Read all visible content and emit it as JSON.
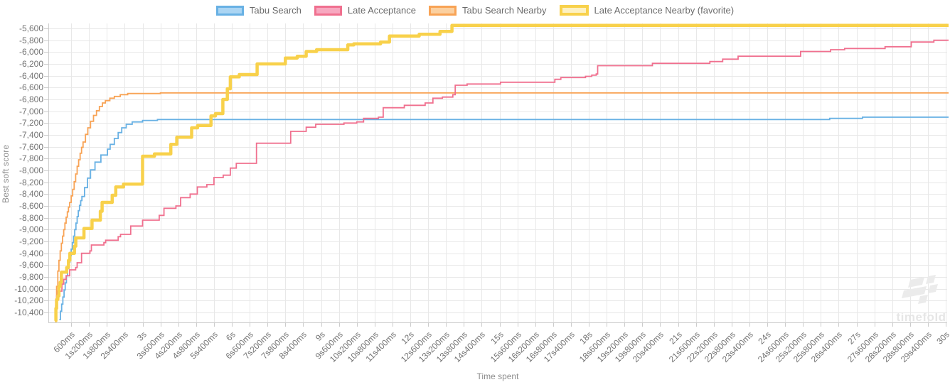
{
  "chart_data": {
    "type": "line",
    "stepped": true,
    "title": "",
    "xlabel": "Time spent",
    "ylabel": "Best soft score",
    "watermark": "timefold",
    "grid": true,
    "legend_position": "top",
    "x_range_ms": [
      0,
      30000
    ],
    "y_range": [
      -10560,
      -5520
    ],
    "x_tick_ms": [
      600,
      1200,
      1800,
      2400,
      3000,
      3600,
      4200,
      4800,
      5400,
      6000,
      6600,
      7200,
      7800,
      8400,
      9000,
      9600,
      10200,
      10800,
      11400,
      12000,
      12600,
      13200,
      13800,
      14400,
      15000,
      15600,
      16200,
      16800,
      17400,
      18000,
      18600,
      19200,
      19800,
      20400,
      21000,
      21600,
      22200,
      22800,
      23400,
      24000,
      24600,
      25200,
      25800,
      26400,
      27000,
      27600,
      28200,
      28800,
      29400,
      30000
    ],
    "x_tick_labels": [
      "600ms",
      "1s200ms",
      "1s800ms",
      "2s400ms",
      "3s",
      "3s600ms",
      "4s200ms",
      "4s800ms",
      "5s400ms",
      "6s",
      "6s600ms",
      "7s200ms",
      "7s800ms",
      "8s400ms",
      "9s",
      "9s600ms",
      "10s200ms",
      "10s800ms",
      "11s400ms",
      "12s",
      "12s600ms",
      "13s200ms",
      "13s800ms",
      "14s400ms",
      "15s",
      "15s600ms",
      "16s200ms",
      "16s800ms",
      "17s400ms",
      "18s",
      "18s600ms",
      "19s200ms",
      "19s800ms",
      "20s400ms",
      "21s",
      "21s600ms",
      "22s200ms",
      "22s800ms",
      "23s400ms",
      "24s",
      "24s600ms",
      "25s200ms",
      "25s800ms",
      "26s400ms",
      "27s",
      "27s600ms",
      "28s200ms",
      "28s800ms",
      "29s400ms",
      "30s"
    ],
    "y_tick_values": [
      -5600,
      -5800,
      -6000,
      -6200,
      -6400,
      -6600,
      -6800,
      -7000,
      -7200,
      -7400,
      -7600,
      -7800,
      -8000,
      -8200,
      -8400,
      -8600,
      -8800,
      -9000,
      -9200,
      -9400,
      -9600,
      -9800,
      -10000,
      -10200,
      -10400
    ],
    "y_tick_labels": [
      "-5,600",
      "-5,800",
      "-6,000",
      "-6,200",
      "-6,400",
      "-6,600",
      "-6,800",
      "-7,000",
      "-7,200",
      "-7,400",
      "-7,600",
      "-7,800",
      "-8,000",
      "-8,200",
      "-8,400",
      "-8,600",
      "-8,800",
      "-9,000",
      "-9,200",
      "-9,400",
      "-9,600",
      "-9,800",
      "-10,000",
      "-10,200",
      "-10,400"
    ],
    "series": [
      {
        "name": "Tabu Search",
        "color": "#68b1e4",
        "swatch_fill": "#abd5f3",
        "line_width": 1.8,
        "points": [
          [
            200,
            -10520
          ],
          [
            240,
            -10380
          ],
          [
            280,
            -10260
          ],
          [
            320,
            -10140
          ],
          [
            360,
            -10020
          ],
          [
            400,
            -9900
          ],
          [
            440,
            -9780
          ],
          [
            480,
            -9660
          ],
          [
            520,
            -9550
          ],
          [
            560,
            -9440
          ],
          [
            600,
            -9330
          ],
          [
            640,
            -9220
          ],
          [
            680,
            -9110
          ],
          [
            720,
            -9000
          ],
          [
            760,
            -8890
          ],
          [
            800,
            -8780
          ],
          [
            840,
            -8680
          ],
          [
            880,
            -8590
          ],
          [
            920,
            -8510
          ],
          [
            960,
            -8440
          ],
          [
            1050,
            -8290
          ],
          [
            1150,
            -8130
          ],
          [
            1250,
            -7990
          ],
          [
            1400,
            -7860
          ],
          [
            1600,
            -7740
          ],
          [
            1820,
            -7640
          ],
          [
            1910,
            -7560
          ],
          [
            2050,
            -7460
          ],
          [
            2180,
            -7360
          ],
          [
            2300,
            -7280
          ],
          [
            2450,
            -7220
          ],
          [
            2650,
            -7180
          ],
          [
            3000,
            -7155
          ],
          [
            3500,
            -7140
          ],
          [
            26100,
            -7120
          ],
          [
            27200,
            -7100
          ],
          [
            30000,
            -7100
          ]
        ]
      },
      {
        "name": "Late Acceptance",
        "color": "#f0708f",
        "swatch_fill": "#f7a8c0",
        "line_width": 1.8,
        "points": [
          [
            50,
            -10540
          ],
          [
            80,
            -10280
          ],
          [
            110,
            -10120
          ],
          [
            150,
            -10040
          ],
          [
            290,
            -9920
          ],
          [
            350,
            -9840
          ],
          [
            430,
            -9780
          ],
          [
            550,
            -9680
          ],
          [
            750,
            -9640
          ],
          [
            800,
            -9560
          ],
          [
            950,
            -9400
          ],
          [
            1230,
            -9360
          ],
          [
            1280,
            -9260
          ],
          [
            1700,
            -9220
          ],
          [
            1760,
            -9180
          ],
          [
            2180,
            -9120
          ],
          [
            2260,
            -9080
          ],
          [
            2600,
            -8940
          ],
          [
            3000,
            -8840
          ],
          [
            3560,
            -8760
          ],
          [
            3720,
            -8640
          ],
          [
            4120,
            -8600
          ],
          [
            4280,
            -8460
          ],
          [
            4600,
            -8400
          ],
          [
            4840,
            -8280
          ],
          [
            5160,
            -8240
          ],
          [
            5400,
            -8120
          ],
          [
            5710,
            -8080
          ],
          [
            5950,
            -7960
          ],
          [
            6150,
            -7880
          ],
          [
            6830,
            -7540
          ],
          [
            7980,
            -7340
          ],
          [
            8500,
            -7270
          ],
          [
            8820,
            -7220
          ],
          [
            9770,
            -7200
          ],
          [
            10200,
            -7180
          ],
          [
            10430,
            -7120
          ],
          [
            10930,
            -7100
          ],
          [
            11090,
            -6940
          ],
          [
            11800,
            -6900
          ],
          [
            12500,
            -6860
          ],
          [
            12760,
            -6780
          ],
          [
            13080,
            -6760
          ],
          [
            13430,
            -6720
          ],
          [
            13510,
            -6560
          ],
          [
            13910,
            -6540
          ],
          [
            15030,
            -6510
          ],
          [
            16860,
            -6460
          ],
          [
            17060,
            -6430
          ],
          [
            17890,
            -6410
          ],
          [
            18100,
            -6390
          ],
          [
            18250,
            -6370
          ],
          [
            18300,
            -6230
          ],
          [
            20140,
            -6190
          ],
          [
            22070,
            -6160
          ],
          [
            22500,
            -6120
          ],
          [
            23020,
            -6070
          ],
          [
            25120,
            -5990
          ],
          [
            26130,
            -5960
          ],
          [
            26600,
            -5940
          ],
          [
            27960,
            -5910
          ],
          [
            28840,
            -5830
          ],
          [
            29600,
            -5800
          ],
          [
            30000,
            -5800
          ]
        ]
      },
      {
        "name": "Tabu Search Nearby",
        "color": "#f8a355",
        "swatch_fill": "#fbd0a0",
        "line_width": 1.8,
        "points": [
          [
            50,
            -10540
          ],
          [
            80,
            -10200
          ],
          [
            110,
            -9960
          ],
          [
            150,
            -9700
          ],
          [
            190,
            -9520
          ],
          [
            230,
            -9360
          ],
          [
            270,
            -9230
          ],
          [
            310,
            -9110
          ],
          [
            350,
            -9000
          ],
          [
            390,
            -8890
          ],
          [
            430,
            -8790
          ],
          [
            470,
            -8700
          ],
          [
            510,
            -8620
          ],
          [
            550,
            -8540
          ],
          [
            600,
            -8430
          ],
          [
            650,
            -8320
          ],
          [
            700,
            -8190
          ],
          [
            750,
            -8060
          ],
          [
            800,
            -7930
          ],
          [
            850,
            -7820
          ],
          [
            900,
            -7710
          ],
          [
            950,
            -7610
          ],
          [
            1000,
            -7520
          ],
          [
            1080,
            -7390
          ],
          [
            1160,
            -7280
          ],
          [
            1250,
            -7170
          ],
          [
            1350,
            -7070
          ],
          [
            1450,
            -6990
          ],
          [
            1550,
            -6920
          ],
          [
            1650,
            -6860
          ],
          [
            1750,
            -6820
          ],
          [
            1900,
            -6780
          ],
          [
            2050,
            -6750
          ],
          [
            2250,
            -6720
          ],
          [
            2500,
            -6700
          ],
          [
            3600,
            -6690
          ],
          [
            30000,
            -6690
          ]
        ]
      },
      {
        "name": "Late Acceptance Nearby (favorite)",
        "color": "#f8d14b",
        "swatch_fill": "#fdf1c2",
        "line_width": 4.5,
        "points": [
          [
            60,
            -10540
          ],
          [
            85,
            -10330
          ],
          [
            110,
            -10180
          ],
          [
            150,
            -10120
          ],
          [
            190,
            -9960
          ],
          [
            230,
            -9890
          ],
          [
            270,
            -9720
          ],
          [
            450,
            -9640
          ],
          [
            510,
            -9520
          ],
          [
            555,
            -9400
          ],
          [
            710,
            -9280
          ],
          [
            755,
            -9140
          ],
          [
            1030,
            -8980
          ],
          [
            1300,
            -8840
          ],
          [
            1580,
            -8690
          ],
          [
            1640,
            -8540
          ],
          [
            1980,
            -8420
          ],
          [
            2100,
            -8280
          ],
          [
            2360,
            -8230
          ],
          [
            3000,
            -7760
          ],
          [
            3400,
            -7720
          ],
          [
            3950,
            -7560
          ],
          [
            4150,
            -7440
          ],
          [
            4650,
            -7280
          ],
          [
            4850,
            -7240
          ],
          [
            5300,
            -7080
          ],
          [
            5450,
            -7040
          ],
          [
            5700,
            -6800
          ],
          [
            5850,
            -6620
          ],
          [
            5950,
            -6420
          ],
          [
            6250,
            -6380
          ],
          [
            6850,
            -6200
          ],
          [
            7800,
            -6100
          ],
          [
            8200,
            -6070
          ],
          [
            8500,
            -5990
          ],
          [
            8850,
            -5960
          ],
          [
            9900,
            -5880
          ],
          [
            10100,
            -5860
          ],
          [
            11000,
            -5830
          ],
          [
            11300,
            -5730
          ],
          [
            12300,
            -5700
          ],
          [
            13000,
            -5650
          ],
          [
            13400,
            -5548
          ],
          [
            30000,
            -5548
          ]
        ]
      }
    ]
  }
}
